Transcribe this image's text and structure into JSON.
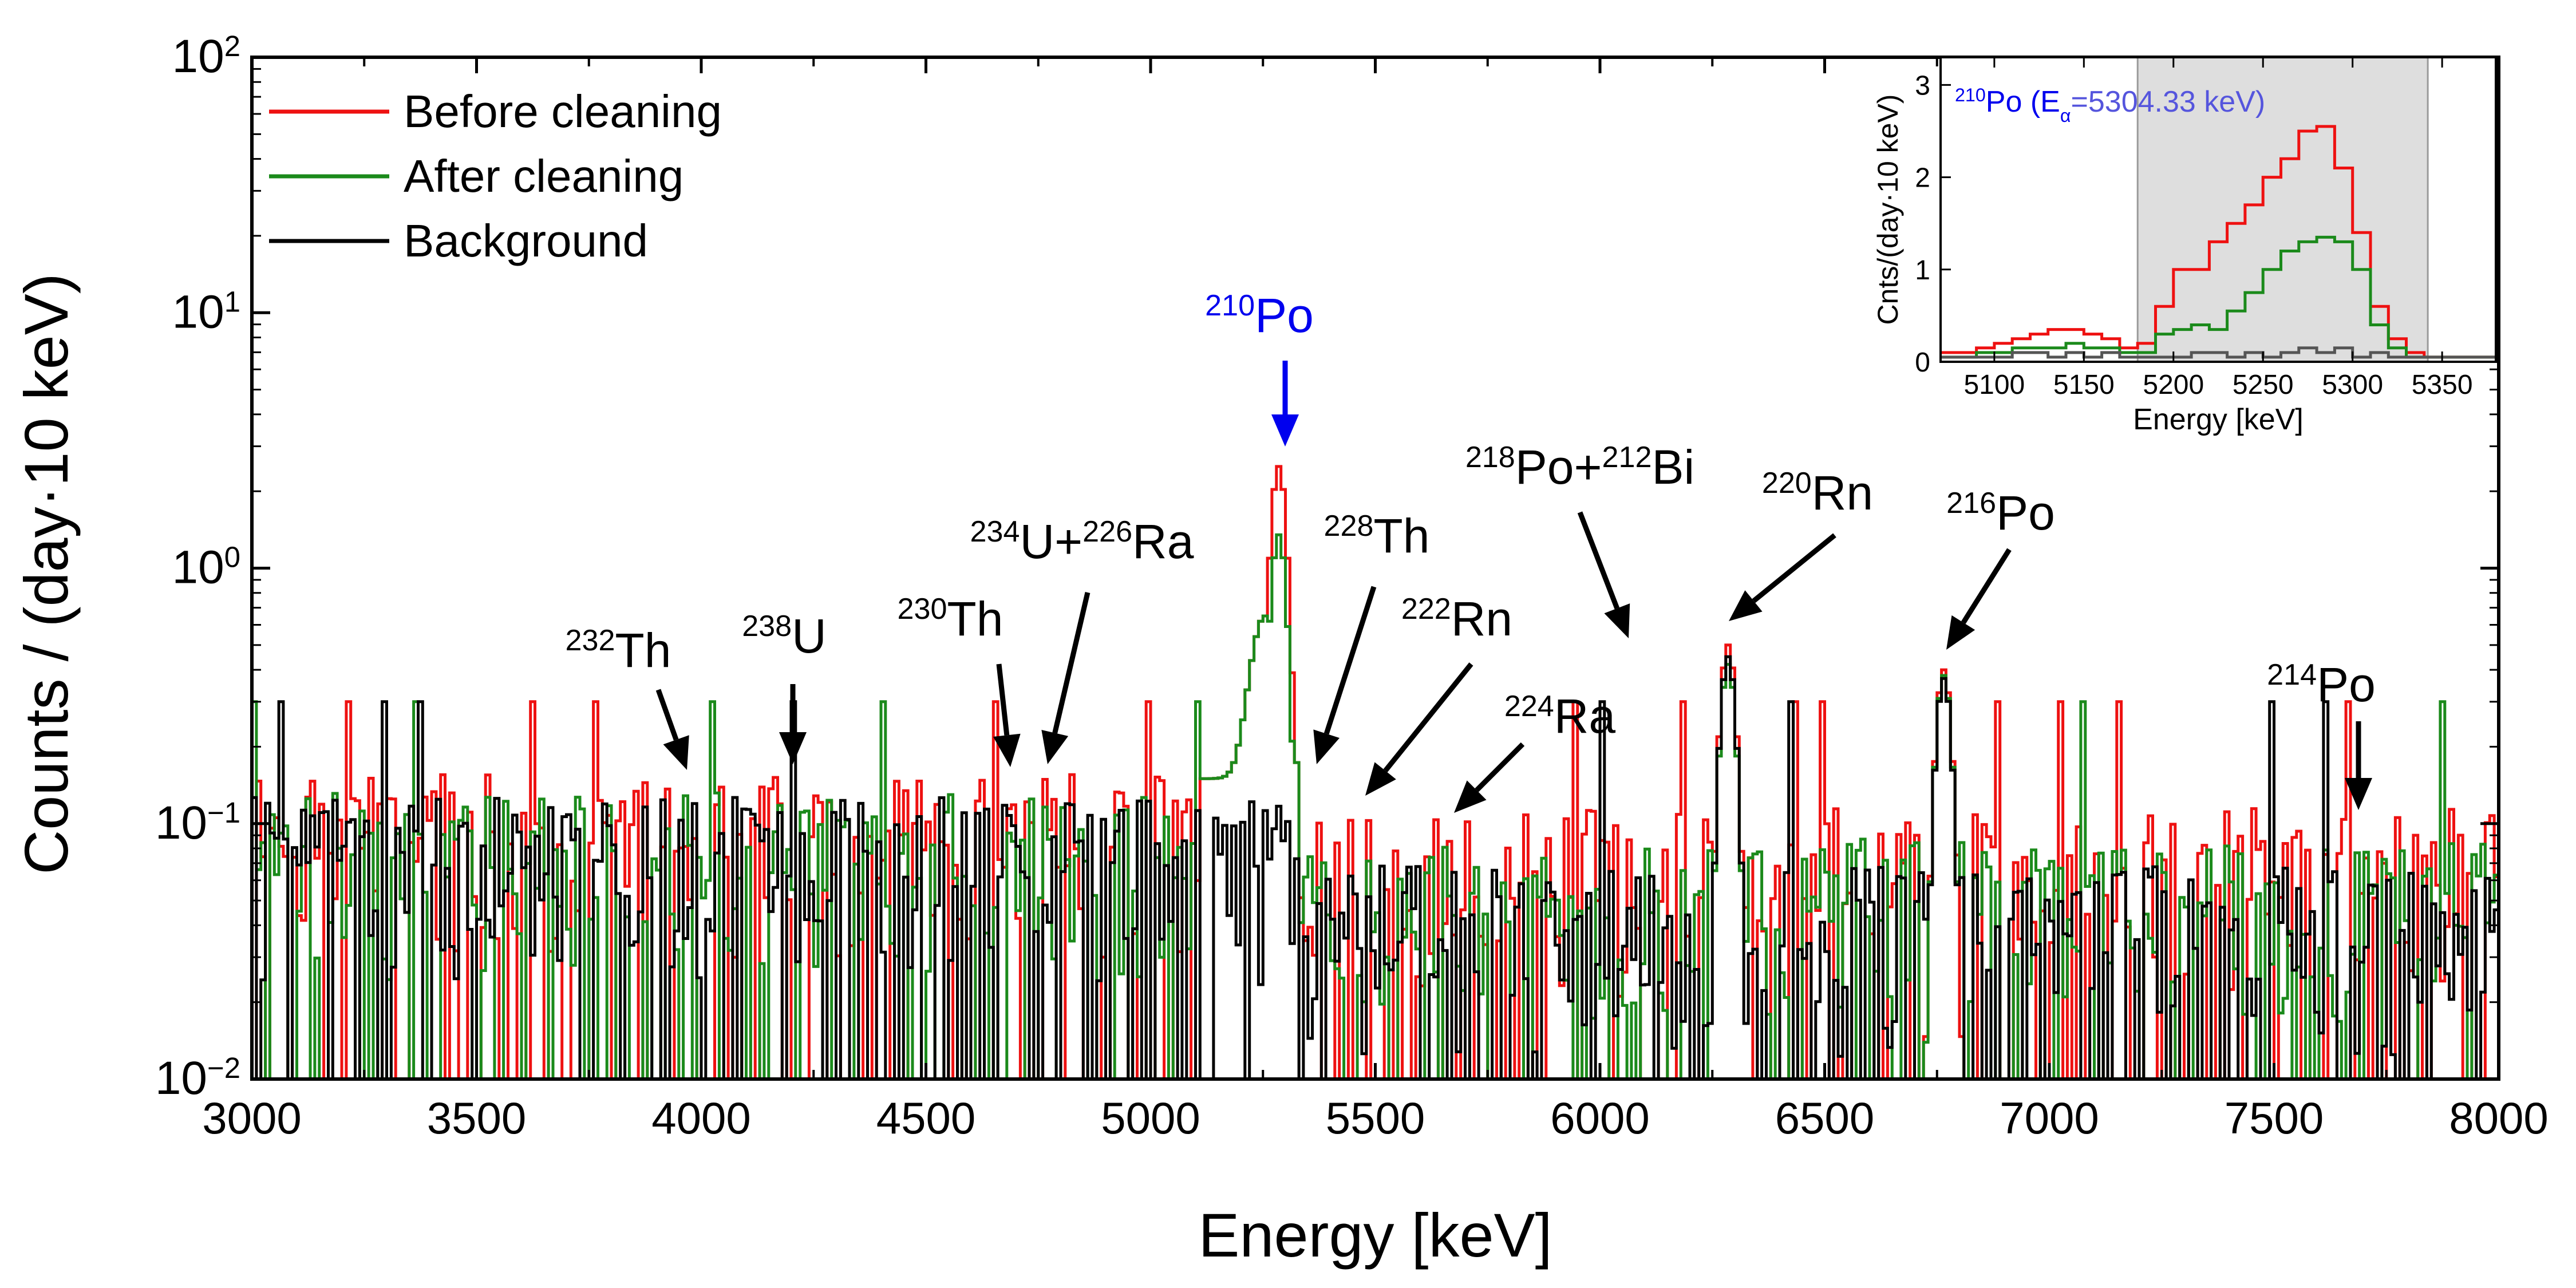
{
  "chart_data": [
    {
      "type": "line",
      "step": true,
      "xscale": "linear",
      "yscale": "log",
      "xlabel": "Energy [keV]",
      "ylabel": "Counts / (day·10 keV)",
      "xlim": [
        3000,
        8000
      ],
      "ylim": [
        0.01,
        100
      ],
      "xticks": [
        "3000",
        "3500",
        "4000",
        "4500",
        "5000",
        "5500",
        "6000",
        "6500",
        "7000",
        "7500",
        "8000"
      ],
      "xtick_values": [
        3000,
        3500,
        4000,
        4500,
        5000,
        5500,
        6000,
        6500,
        7000,
        7500,
        8000
      ],
      "yticks": [
        {
          "value": 0.01,
          "base": "10",
          "exp": "−2"
        },
        {
          "value": 0.1,
          "base": "10",
          "exp": "−1"
        },
        {
          "value": 1,
          "base": "10",
          "exp": "0"
        },
        {
          "value": 10,
          "base": "10",
          "exp": "1"
        },
        {
          "value": 100,
          "base": "10",
          "exp": "2"
        }
      ],
      "legend_position": "top-left",
      "series": [
        {
          "name": "Before cleaning",
          "color": "#ee1111"
        },
        {
          "name": "After cleaning",
          "color": "#1b8a1b"
        },
        {
          "name": "Background",
          "color": "#000000"
        }
      ],
      "peaks": [
        {
          "x": 3000,
          "sup": "",
          "label": "",
          "peak": 0
        },
        {
          "x": 5280,
          "height_red": 2.5,
          "height_green": 1.35
        },
        {
          "x": 6280,
          "height_red": 0.5,
          "height_green": 0.42,
          "height_black": 0.45
        },
        {
          "x": 6760,
          "height_red": 0.4,
          "height_green": 0.38,
          "height_black": 0.37
        }
      ],
      "annotations": [
        {
          "sup": "232",
          "label": "Th",
          "x": 3970,
          "color": "#000000"
        },
        {
          "sup": "238",
          "label": "U",
          "x": 4200,
          "color": "#000000"
        },
        {
          "sup": "230",
          "label": "Th",
          "x": 4690,
          "color": "#000000"
        },
        {
          "sup": "234",
          "sup2": "226",
          "label": "U+",
          "label2": "Ra",
          "x": 4760,
          "color": "#000000"
        },
        {
          "sup": "210",
          "label": "Po",
          "x": 5310,
          "color": "#0000ee"
        },
        {
          "sup": "228",
          "label": "Th",
          "x": 5380,
          "color": "#000000"
        },
        {
          "sup": "222",
          "label": "Rn",
          "x": 5480,
          "color": "#000000"
        },
        {
          "sup": "224",
          "label": "Ra",
          "x": 5680,
          "color": "#000000"
        },
        {
          "sup": "218",
          "sup2": "212",
          "label": "Po+",
          "label2": "Bi",
          "x": 6060,
          "color": "#000000"
        },
        {
          "sup": "220",
          "label": "Rn",
          "x": 6270,
          "color": "#000000"
        },
        {
          "sup": "216",
          "label": "Po",
          "x": 6760,
          "color": "#000000"
        },
        {
          "sup": "214",
          "label": "Po",
          "x": 7690,
          "color": "#000000"
        }
      ]
    },
    {
      "type": "line",
      "step": true,
      "inset": true,
      "xlabel": "Energy [keV]",
      "ylabel": "Cnts/(day·10 keV)",
      "xlim": [
        5070,
        5380
      ],
      "ylim": [
        0,
        3.3
      ],
      "xticks": [
        "5100",
        "5150",
        "5200",
        "5250",
        "5300",
        "5350"
      ],
      "xtick_values": [
        5100,
        5150,
        5200,
        5250,
        5300,
        5350
      ],
      "yticks": [
        "0",
        "1",
        "2",
        "3"
      ],
      "ytick_values": [
        0,
        1,
        2,
        3
      ],
      "shaded_region": [
        5180,
        5342
      ],
      "annotation": {
        "sup": "210",
        "label": "Po (E",
        "sub": "α",
        "tail": "=5304.33 keV)"
      },
      "bin_edges": [
        5070,
        5080,
        5090,
        5100,
        5110,
        5120,
        5130,
        5140,
        5150,
        5160,
        5170,
        5180,
        5190,
        5200,
        5210,
        5220,
        5230,
        5240,
        5250,
        5260,
        5270,
        5280,
        5290,
        5300,
        5310,
        5320,
        5330,
        5340,
        5350,
        5360,
        5370,
        5380
      ],
      "series": [
        {
          "name": "Before cleaning",
          "color": "#ee1111",
          "values": [
            0.1,
            0.1,
            0.15,
            0.2,
            0.25,
            0.3,
            0.35,
            0.35,
            0.3,
            0.25,
            0.15,
            0.2,
            0.6,
            1.0,
            1.0,
            1.3,
            1.5,
            1.7,
            2.0,
            2.2,
            2.5,
            2.55,
            2.1,
            1.4,
            0.6,
            0.25,
            0.1,
            0.05,
            0.05,
            0.05,
            0.05
          ]
        },
        {
          "name": "After cleaning",
          "color": "#1b8a1b",
          "values": [
            0.05,
            0.05,
            0.1,
            0.1,
            0.15,
            0.15,
            0.15,
            0.2,
            0.15,
            0.15,
            0.1,
            0.1,
            0.3,
            0.35,
            0.4,
            0.35,
            0.55,
            0.75,
            1.0,
            1.2,
            1.3,
            1.35,
            1.3,
            1.0,
            0.4,
            0.15,
            0.05,
            0.05,
            0.05,
            0.05,
            0.05
          ]
        },
        {
          "name": "Background",
          "color": "#555555",
          "values": [
            0.05,
            0.05,
            0.05,
            0.05,
            0.1,
            0.1,
            0.05,
            0.1,
            0.05,
            0.1,
            0.05,
            0.05,
            0.05,
            0.05,
            0.1,
            0.1,
            0.05,
            0.1,
            0.05,
            0.1,
            0.15,
            0.1,
            0.15,
            0.05,
            0.1,
            0.05,
            0.05,
            0.05,
            0.05,
            0.05,
            0.05
          ]
        }
      ]
    }
  ]
}
